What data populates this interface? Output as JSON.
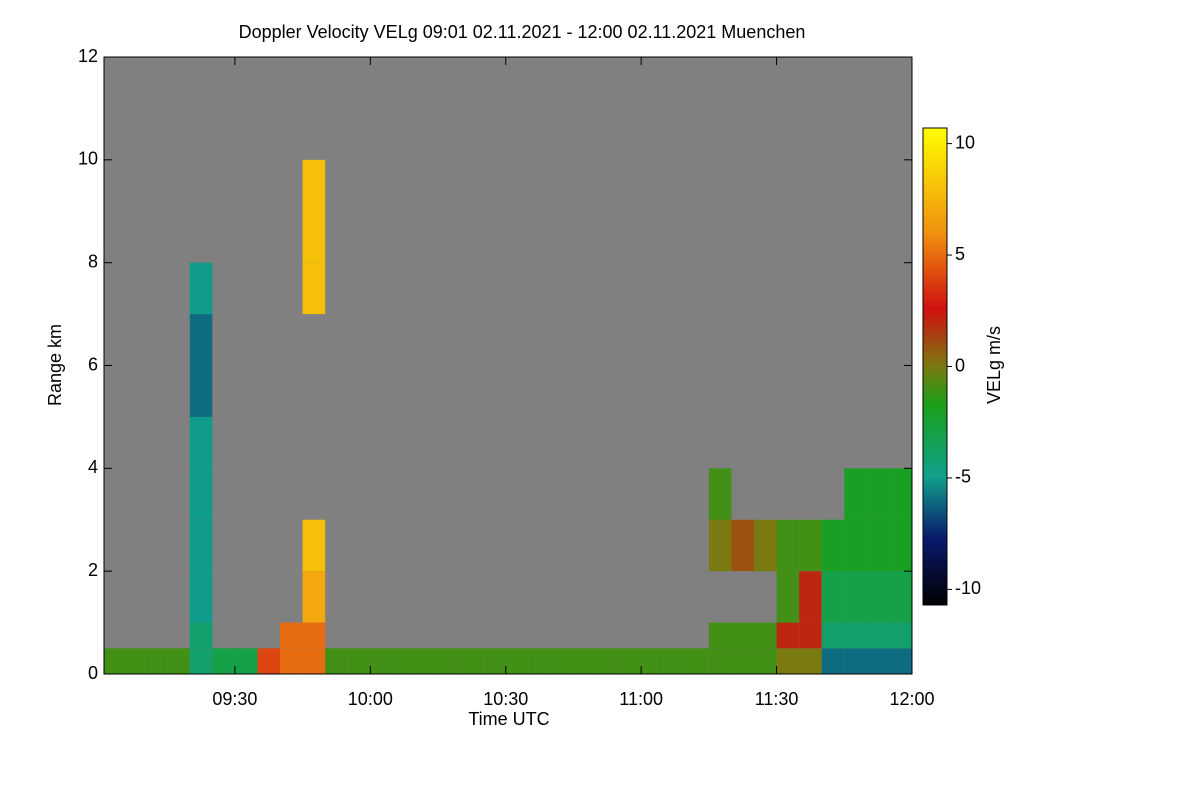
{
  "chart_data": {
    "type": "heatmap",
    "title": "Doppler Velocity VELg   09:01 02.11.2021 - 12:00 02.11.2021 Muenchen",
    "x_label": "Time UTC",
    "y_label": "Range km",
    "colorbar_label": "VELg m/s",
    "xlim": [
      "09:01",
      "12:00"
    ],
    "xticks": [
      "09:30",
      "10:00",
      "10:30",
      "11:00",
      "11:30",
      "12:00"
    ],
    "ylim": [
      0,
      12
    ],
    "yticks": [
      0,
      2,
      4,
      6,
      8,
      10,
      12
    ],
    "zlim": [
      -10.7,
      10.7
    ],
    "zticks": [
      -10,
      -5,
      0,
      5,
      10
    ],
    "x": [
      "09:00",
      "09:05",
      "09:10",
      "09:15",
      "09:20",
      "09:25",
      "09:30",
      "09:35",
      "09:40",
      "09:45",
      "09:50",
      "09:55",
      "10:00",
      "10:05",
      "10:10",
      "10:15",
      "10:20",
      "10:25",
      "10:30",
      "10:35",
      "10:40",
      "10:45",
      "10:50",
      "10:55",
      "11:00",
      "11:05",
      "11:10",
      "11:15",
      "11:20",
      "11:25",
      "11:30",
      "11:35",
      "11:40",
      "11:45",
      "11:50",
      "11:55",
      "12:00"
    ],
    "y": [
      0,
      0.5,
      1,
      2,
      3,
      4,
      5,
      6,
      7,
      8,
      10,
      12
    ],
    "z": [
      [
        -1,
        -1,
        -1,
        -1,
        -4,
        -3,
        -3,
        4,
        5,
        5,
        -1,
        -1,
        -1,
        -1,
        -1,
        -1,
        -1,
        -1,
        -1,
        -1,
        -1,
        -1,
        -1,
        -1,
        -1,
        -1,
        -1,
        -1,
        -1,
        -1,
        0,
        0,
        -6,
        -6,
        -6,
        -6
      ],
      [
        null,
        null,
        null,
        null,
        -4,
        null,
        null,
        null,
        5,
        5,
        null,
        null,
        null,
        null,
        null,
        null,
        null,
        null,
        null,
        null,
        null,
        null,
        null,
        null,
        null,
        null,
        null,
        -1,
        -1,
        -1,
        2,
        2,
        -4,
        -4,
        -4,
        -4
      ],
      [
        null,
        null,
        null,
        null,
        -5,
        null,
        null,
        null,
        null,
        7,
        null,
        null,
        null,
        null,
        null,
        null,
        null,
        null,
        null,
        null,
        null,
        null,
        null,
        null,
        null,
        null,
        null,
        null,
        null,
        null,
        -1,
        2,
        -3,
        -3,
        -3,
        -3
      ],
      [
        null,
        null,
        null,
        null,
        -5,
        null,
        null,
        null,
        null,
        8,
        null,
        null,
        null,
        null,
        null,
        null,
        null,
        null,
        null,
        null,
        null,
        null,
        null,
        null,
        null,
        null,
        null,
        0,
        1,
        0,
        -1,
        -1,
        -2,
        -2,
        -2,
        -2
      ],
      [
        null,
        null,
        null,
        null,
        -5,
        null,
        null,
        null,
        null,
        null,
        null,
        null,
        null,
        null,
        null,
        null,
        null,
        null,
        null,
        null,
        null,
        null,
        null,
        null,
        null,
        null,
        null,
        -1,
        null,
        null,
        null,
        null,
        null,
        -2,
        -2,
        -2
      ],
      [
        null,
        null,
        null,
        null,
        -5,
        null,
        null,
        null,
        null,
        null,
        null,
        null,
        null,
        null,
        null,
        null,
        null,
        null,
        null,
        null,
        null,
        null,
        null,
        null,
        null,
        null,
        null,
        null,
        null,
        null,
        null,
        null,
        null,
        null,
        null,
        null
      ],
      [
        null,
        null,
        null,
        null,
        -6,
        null,
        null,
        null,
        null,
        null,
        null,
        null,
        null,
        null,
        null,
        null,
        null,
        null,
        null,
        null,
        null,
        null,
        null,
        null,
        null,
        null,
        null,
        null,
        null,
        null,
        null,
        null,
        null,
        null,
        null,
        null
      ],
      [
        null,
        null,
        null,
        null,
        -6,
        null,
        null,
        null,
        null,
        null,
        null,
        null,
        null,
        null,
        null,
        null,
        null,
        null,
        null,
        null,
        null,
        null,
        null,
        null,
        null,
        null,
        null,
        null,
        null,
        null,
        null,
        null,
        null,
        null,
        null,
        null
      ],
      [
        null,
        null,
        null,
        null,
        -5,
        null,
        null,
        null,
        null,
        8,
        null,
        null,
        null,
        null,
        null,
        null,
        null,
        null,
        null,
        null,
        null,
        null,
        null,
        null,
        null,
        null,
        null,
        null,
        null,
        null,
        null,
        null,
        null,
        null,
        null,
        null
      ],
      [
        null,
        null,
        null,
        null,
        null,
        null,
        null,
        null,
        null,
        8,
        null,
        null,
        null,
        null,
        null,
        null,
        null,
        null,
        null,
        null,
        null,
        null,
        null,
        null,
        null,
        null,
        null,
        null,
        null,
        null,
        null,
        null,
        null,
        null,
        null,
        null
      ],
      [
        null,
        null,
        null,
        null,
        null,
        null,
        null,
        null,
        null,
        null,
        null,
        null,
        null,
        null,
        null,
        null,
        null,
        null,
        null,
        null,
        null,
        null,
        null,
        null,
        null,
        null,
        null,
        null,
        null,
        null,
        null,
        null,
        null,
        null,
        null,
        null
      ]
    ]
  }
}
